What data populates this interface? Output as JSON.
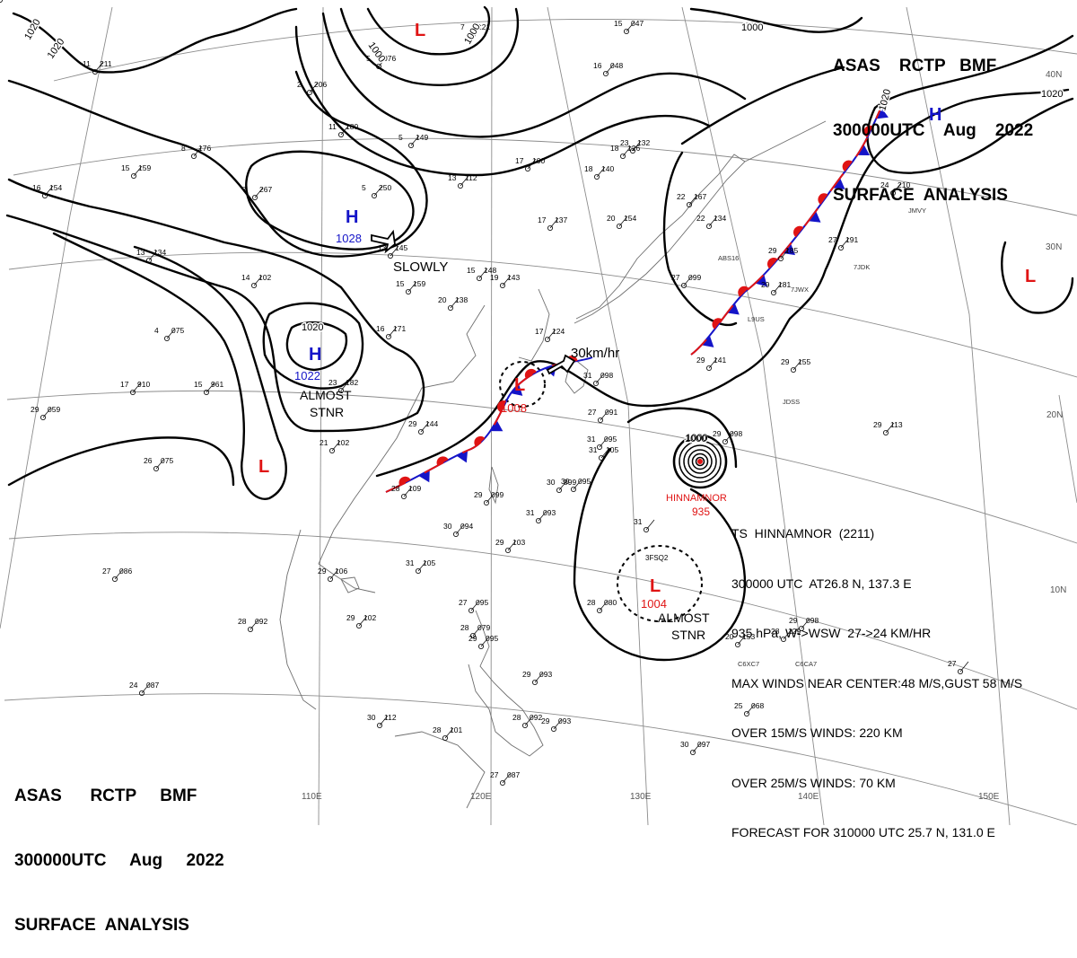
{
  "header": {
    "line1": "ASAS    RCTP   BMF",
    "line2": "300000UTC    Aug    2022",
    "line3": "SURFACE  ANALYSIS"
  },
  "footer": {
    "line1": "ASAS      RCTP     BMF",
    "line2": "300000UTC     Aug     2022",
    "line3": "SURFACE  ANALYSIS"
  },
  "lon_labels": [
    "110E",
    "120E",
    "130E",
    "140E",
    "150E"
  ],
  "lat_labels": [
    "40N",
    "30N",
    "20N",
    "10N"
  ],
  "isobar_labels": [
    "1020",
    "1020",
    "1000",
    "1000",
    "1000",
    "1020",
    "1020",
    "1020",
    "1000"
  ],
  "pressure_centers": [
    {
      "type": "H",
      "value": "1028",
      "color": "#1414c8"
    },
    {
      "type": "H",
      "value": "1022",
      "color": "#1414c8"
    },
    {
      "type": "H",
      "value": "",
      "color": "#1414c8"
    },
    {
      "type": "L",
      "value": "",
      "color": "#e01414"
    },
    {
      "type": "L",
      "value": "1008",
      "color": "#e01414"
    },
    {
      "type": "L",
      "value": "1004",
      "color": "#e01414"
    },
    {
      "type": "L",
      "value": "",
      "color": "#e01414"
    },
    {
      "type": "L",
      "value": "",
      "color": "#e01414"
    }
  ],
  "motion_labels": [
    "SLOWLY",
    "30km/hr"
  ],
  "stationary_labels": [
    {
      "line1": "ALMOST",
      "line2": "STNR"
    },
    {
      "line1": "ALMOST",
      "line2": "STNR"
    }
  ],
  "typhoon": {
    "name": "HINNAMNOR",
    "pressure": "935",
    "ring_label": "1000",
    "summary": [
      "TS  HINNAMNOR  (2211)",
      "300000 UTC  AT26.8 N, 137.3 E",
      "935 hPa, W->WSW  27->24 KM/HR",
      "MAX WINDS NEAR CENTER:48 M/S,GUST 58 M/S",
      "OVER 15M/S WINDS: 220 KM",
      "OVER 25M/S WINDS: 70 KM",
      "FORECAST FOR 310000 UTC 25.7 N, 131.0 E"
    ]
  },
  "depression_code": "3FSQ2",
  "ship_callsigns": [
    "JMVY",
    "7JDK",
    "7JWX",
    "ABS16",
    "L9US",
    "JDSS",
    "C6XC7",
    "C6CA7"
  ],
  "stations": [
    {
      "t": "11",
      "p": "211"
    },
    {
      "t": "2",
      "p": "206"
    },
    {
      "t": "11",
      "p": "180"
    },
    {
      "t": "5",
      "p": "149"
    },
    {
      "t": "8",
      "p": "176"
    },
    {
      "t": "7",
      "p": "267"
    },
    {
      "t": "5",
      "p": "250"
    },
    {
      "t": "15",
      "p": "159"
    },
    {
      "t": "16",
      "p": "154"
    },
    {
      "t": "13",
      "p": "134"
    },
    {
      "t": "14",
      "p": "102"
    },
    {
      "t": "13",
      "p": "145"
    },
    {
      "t": "15",
      "p": "159"
    },
    {
      "t": "20",
      "p": "138"
    },
    {
      "t": "19",
      "p": "143"
    },
    {
      "t": "17",
      "p": "137"
    },
    {
      "t": "15",
      "p": "148"
    },
    {
      "t": "16",
      "p": "171"
    },
    {
      "t": "4",
      "p": "075"
    },
    {
      "t": "17",
      "p": "910"
    },
    {
      "t": "15",
      "p": "961"
    },
    {
      "t": "29",
      "p": "059"
    },
    {
      "t": "26",
      "p": "075"
    },
    {
      "t": "21",
      "p": "102"
    },
    {
      "t": "23",
      "p": "182"
    },
    {
      "t": "29",
      "p": "144"
    },
    {
      "t": "28",
      "p": "109"
    },
    {
      "t": "29",
      "p": "099"
    },
    {
      "t": "31",
      "p": "093"
    },
    {
      "t": "31",
      "p": "105"
    },
    {
      "t": "30",
      "p": "094"
    },
    {
      "t": "29",
      "p": "103"
    },
    {
      "t": "31",
      "p": "105"
    },
    {
      "t": "27",
      "p": "086"
    },
    {
      "t": "29",
      "p": "106"
    },
    {
      "t": "28",
      "p": "092"
    },
    {
      "t": "29",
      "p": "102"
    },
    {
      "t": "24",
      "p": "087"
    },
    {
      "t": "30",
      "p": "112"
    },
    {
      "t": "28",
      "p": "101"
    },
    {
      "t": "27",
      "p": "087"
    },
    {
      "t": "28",
      "p": "092"
    },
    {
      "t": "29",
      "p": "095"
    },
    {
      "t": "27",
      "p": "095"
    },
    {
      "t": "28",
      "p": "079"
    },
    {
      "t": "29",
      "p": "093"
    },
    {
      "t": "28",
      "p": "080"
    },
    {
      "t": "31",
      "p": ""
    },
    {
      "t": "30",
      "p": "099"
    },
    {
      "t": "29",
      "p": "098"
    },
    {
      "t": "29",
      "p": "141"
    },
    {
      "t": "29",
      "p": "155"
    },
    {
      "t": "29",
      "p": "113"
    },
    {
      "t": "29",
      "p": "181"
    },
    {
      "t": "29",
      "p": "185"
    },
    {
      "t": "27",
      "p": "191"
    },
    {
      "t": "24",
      "p": "210"
    },
    {
      "t": "22",
      "p": "134"
    },
    {
      "t": "22",
      "p": "167"
    },
    {
      "t": "20",
      "p": "154"
    },
    {
      "t": "18",
      "p": "140"
    },
    {
      "t": "17",
      "p": "100"
    },
    {
      "t": "13",
      "p": "112"
    },
    {
      "t": "16",
      "p": "048"
    },
    {
      "t": "15",
      "p": "047"
    },
    {
      "t": "7",
      "p": "121"
    },
    {
      "t": "5",
      "p": "076"
    },
    {
      "t": "23",
      "p": "132"
    },
    {
      "t": "18",
      "p": "126"
    },
    {
      "t": "17",
      "p": "124"
    },
    {
      "t": "20",
      "p": "153"
    },
    {
      "t": "28",
      "p": "129"
    },
    {
      "t": "29",
      "p": "098"
    },
    {
      "t": "27",
      "p": ""
    },
    {
      "t": "29",
      "p": "093"
    },
    {
      "t": "30",
      "p": "097"
    },
    {
      "t": "25",
      "p": "068"
    },
    {
      "t": "30",
      "p": "095"
    },
    {
      "t": "31",
      "p": "095"
    },
    {
      "t": "31",
      "p": "098"
    },
    {
      "t": "27",
      "p": "091"
    },
    {
      "t": "27",
      "p": "099"
    },
    {
      "t": "29",
      "p": "098"
    }
  ],
  "colors": {
    "warm_front": "#e01414",
    "cold_front": "#1414c8",
    "ink": "#000000",
    "grid": "#8c8c8c"
  }
}
